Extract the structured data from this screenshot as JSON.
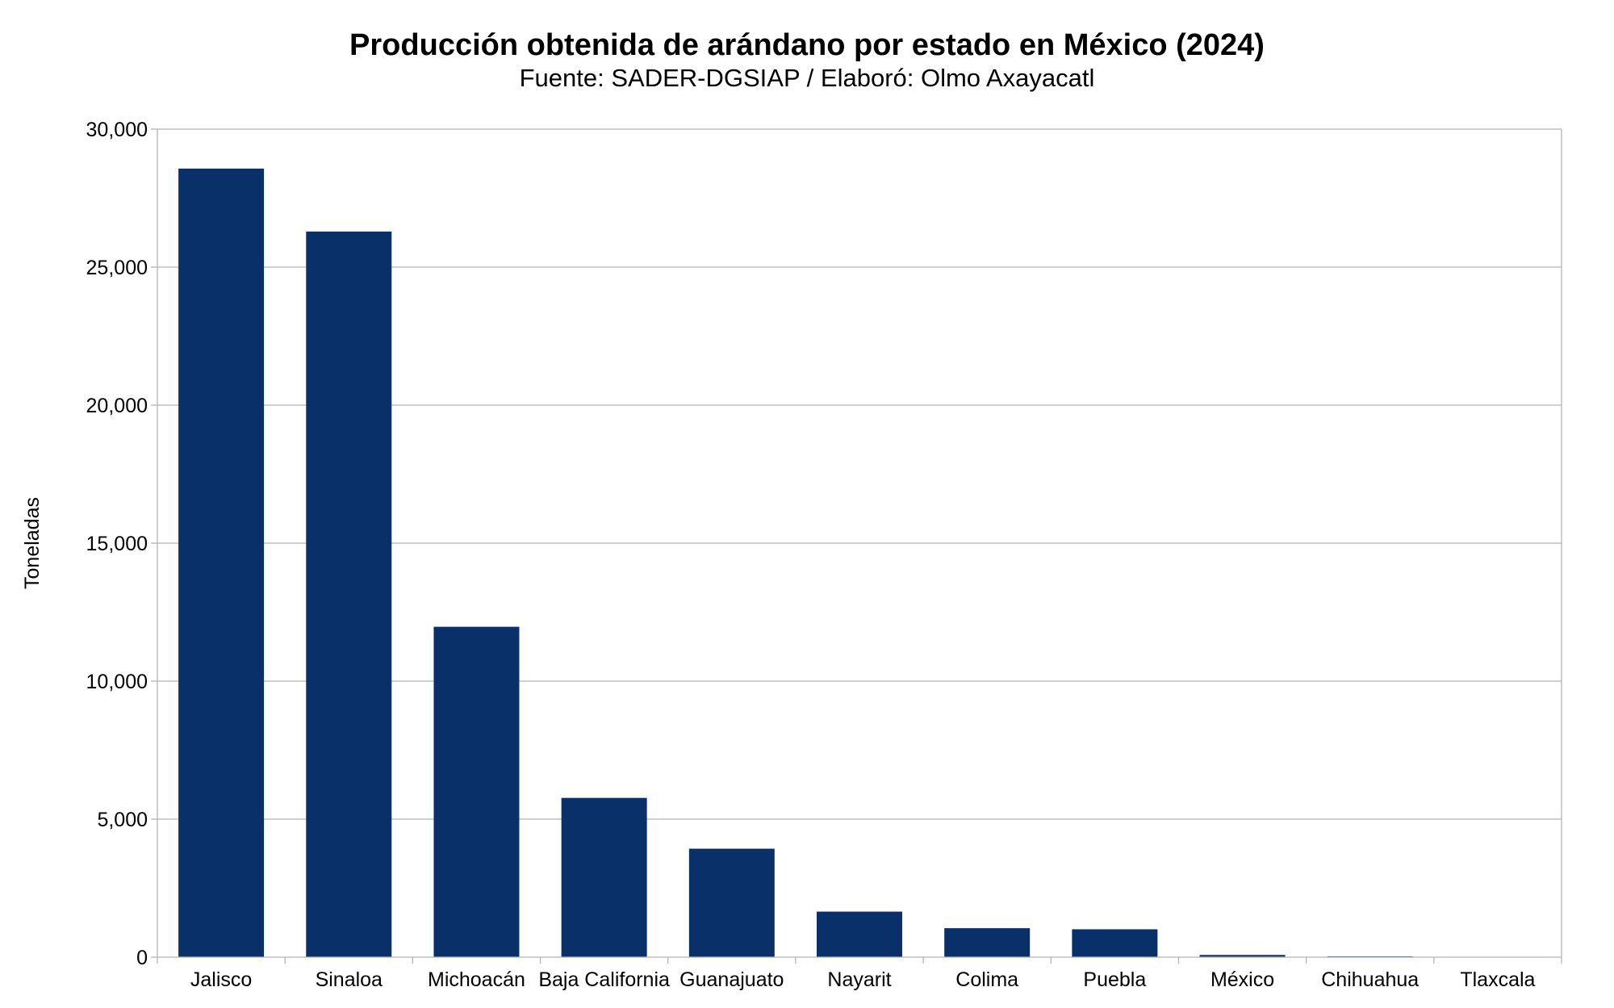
{
  "chart_data": {
    "type": "bar",
    "title": "Producción obtenida de arándano por estado en México (2024)",
    "subtitle": "Fuente: SADER-DGSIAP / Elaboró: Olmo Axayacatl",
    "xlabel": "",
    "ylabel": "Toneladas",
    "categories": [
      "Jalisco",
      "Sinaloa",
      "Michoacán",
      "Baja California",
      "Guanajuato",
      "Nayarit",
      "Colima",
      "Puebla",
      "México",
      "Chihuahua",
      "Tlaxcala"
    ],
    "values": [
      28570,
      26290,
      11970,
      5770,
      3930,
      1650,
      1050,
      1010,
      80,
      30,
      15
    ],
    "ylim": [
      0,
      30000
    ],
    "yticks": [
      0,
      5000,
      10000,
      15000,
      20000,
      25000,
      30000
    ],
    "ytick_labels": [
      "0",
      "5,000",
      "10,000",
      "15,000",
      "20,000",
      "25,000",
      "30,000"
    ],
    "grid": true,
    "legend": "none",
    "bar_color": "#0a3069",
    "grid_color": "#b3b3b3"
  }
}
